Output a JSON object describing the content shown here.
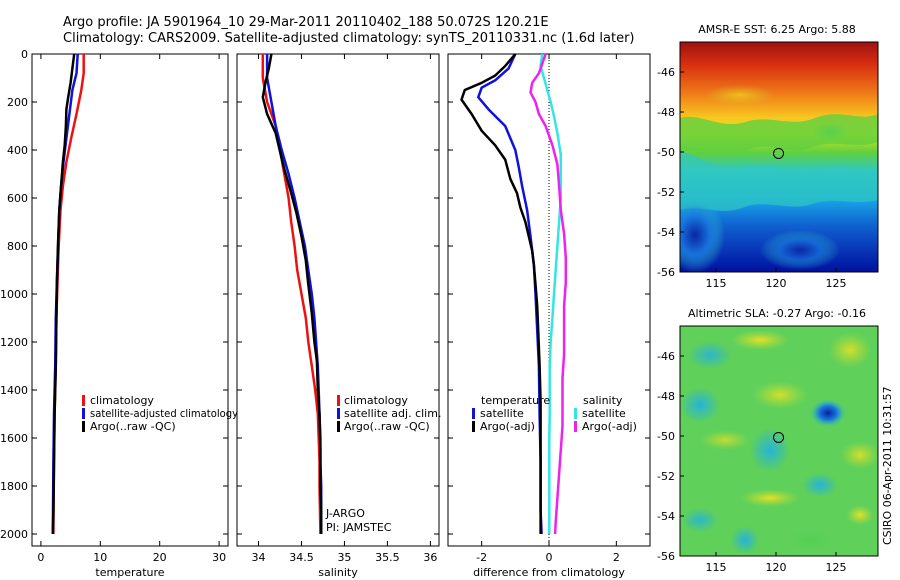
{
  "title_line1": "Argo profile: JA 5901964_10 29-Mar-2011 20110402_188 50.072S 120.21E",
  "title_line2": "Climatology: CARS2009. Satellite-adjusted climatology: synTS_20110331.nc (1.6d later)",
  "credit": "CSIRO 06-Apr-2011 10:31:57",
  "colors": {
    "climatology": "#ee1111",
    "satellite": "#1111dd",
    "argo": "#000000",
    "sal_satellite": "#33e6e6",
    "sal_argo": "#ee22ee"
  },
  "chart_data": [
    {
      "id": "temperature",
      "type": "line",
      "xlabel": "temperature",
      "ylabel": "",
      "xlim": [
        -1.5,
        31.5
      ],
      "ylim": [
        2050,
        0
      ],
      "xticks": [
        0,
        10,
        20,
        30
      ],
      "xtick_labels": [
        "0",
        "10",
        "20",
        "30"
      ],
      "yticks": [
        0,
        200,
        400,
        600,
        800,
        1000,
        1200,
        1400,
        1600,
        1800,
        2000
      ],
      "ytick_labels": [
        "0",
        "200",
        "400",
        "600",
        "800",
        "1000",
        "1200",
        "1400",
        "1600",
        "1800",
        "2000"
      ],
      "legend": [
        "climatology",
        "satellite-adjusted climatology",
        "Argo(..raw -QC)"
      ],
      "series": [
        {
          "name": "climatology",
          "color": "climatology",
          "points": [
            [
              7.2,
              0
            ],
            [
              7.2,
              80
            ],
            [
              6.8,
              150
            ],
            [
              6.0,
              250
            ],
            [
              5.1,
              350
            ],
            [
              4.3,
              450
            ],
            [
              3.7,
              550
            ],
            [
              3.3,
              650
            ],
            [
              3.0,
              800
            ],
            [
              2.8,
              950
            ],
            [
              2.6,
              1100
            ],
            [
              2.5,
              1300
            ],
            [
              2.3,
              1500
            ],
            [
              2.2,
              1700
            ],
            [
              2.1,
              2000
            ]
          ]
        },
        {
          "name": "satellite-adjusted climatology",
          "color": "satellite",
          "points": [
            [
              6.2,
              0
            ],
            [
              6.0,
              80
            ],
            [
              5.3,
              150
            ],
            [
              4.8,
              250
            ],
            [
              4.3,
              350
            ],
            [
              3.8,
              450
            ],
            [
              3.4,
              550
            ],
            [
              3.1,
              650
            ],
            [
              2.9,
              800
            ],
            [
              2.7,
              950
            ],
            [
              2.5,
              1100
            ],
            [
              2.4,
              1300
            ],
            [
              2.2,
              1500
            ],
            [
              2.1,
              1700
            ],
            [
              2.0,
              2000
            ]
          ]
        },
        {
          "name": "Argo(..raw -QC)",
          "color": "argo",
          "points": [
            [
              5.6,
              0
            ],
            [
              5.3,
              60
            ],
            [
              5.0,
              120
            ],
            [
              4.6,
              180
            ],
            [
              4.3,
              230
            ],
            [
              4.2,
              300
            ],
            [
              4.0,
              380
            ],
            [
              3.7,
              450
            ],
            [
              3.4,
              550
            ],
            [
              3.1,
              650
            ],
            [
              2.9,
              780
            ],
            [
              2.7,
              950
            ],
            [
              2.6,
              1100
            ],
            [
              2.5,
              1300
            ],
            [
              2.3,
              1500
            ],
            [
              2.2,
              1700
            ],
            [
              2.1,
              1900
            ],
            [
              2.0,
              2000
            ]
          ]
        }
      ]
    },
    {
      "id": "salinity",
      "type": "line",
      "xlabel": "salinity",
      "ylabel": "",
      "xlim": [
        33.75,
        36.1
      ],
      "ylim": [
        2050,
        0
      ],
      "xticks": [
        34,
        34.5,
        35,
        35.5,
        36
      ],
      "xtick_labels": [
        "34",
        "34.5",
        "35",
        "35.5",
        "36"
      ],
      "legend": [
        "climatology",
        "satellite adj. clim.",
        "Argo(..raw -QC)"
      ],
      "annotation": [
        "J-ARGO",
        "PI: JAMSTEC"
      ],
      "series": [
        {
          "name": "climatology",
          "color": "climatology",
          "points": [
            [
              34.05,
              0
            ],
            [
              34.05,
              100
            ],
            [
              34.1,
              200
            ],
            [
              34.2,
              300
            ],
            [
              34.25,
              400
            ],
            [
              34.3,
              500
            ],
            [
              34.35,
              600
            ],
            [
              34.38,
              700
            ],
            [
              34.42,
              800
            ],
            [
              34.45,
              900
            ],
            [
              34.5,
              1000
            ],
            [
              34.55,
              1100
            ],
            [
              34.58,
              1200
            ],
            [
              34.62,
              1300
            ],
            [
              34.66,
              1400
            ],
            [
              34.69,
              1500
            ],
            [
              34.7,
              1600
            ],
            [
              34.71,
              1700
            ],
            [
              34.71,
              1800
            ],
            [
              34.72,
              2000
            ]
          ]
        },
        {
          "name": "satellite adj. clim.",
          "color": "satellite",
          "points": [
            [
              34.1,
              0
            ],
            [
              34.1,
              100
            ],
            [
              34.15,
              200
            ],
            [
              34.2,
              300
            ],
            [
              34.27,
              400
            ],
            [
              34.35,
              500
            ],
            [
              34.42,
              600
            ],
            [
              34.48,
              700
            ],
            [
              34.54,
              800
            ],
            [
              34.58,
              900
            ],
            [
              34.62,
              1000
            ],
            [
              34.65,
              1100
            ],
            [
              34.67,
              1200
            ],
            [
              34.69,
              1300
            ],
            [
              34.7,
              1400
            ],
            [
              34.71,
              1500
            ],
            [
              34.72,
              1600
            ],
            [
              34.72,
              1700
            ],
            [
              34.73,
              1800
            ],
            [
              34.73,
              2000
            ]
          ]
        },
        {
          "name": "Argo(..raw -QC)",
          "color": "argo",
          "points": [
            [
              34.15,
              0
            ],
            [
              34.12,
              60
            ],
            [
              34.08,
              120
            ],
            [
              34.05,
              180
            ],
            [
              34.1,
              250
            ],
            [
              34.2,
              330
            ],
            [
              34.26,
              420
            ],
            [
              34.3,
              480
            ],
            [
              34.38,
              580
            ],
            [
              34.44,
              660
            ],
            [
              34.5,
              760
            ],
            [
              34.55,
              860
            ],
            [
              34.58,
              960
            ],
            [
              34.62,
              1080
            ],
            [
              34.65,
              1200
            ],
            [
              34.68,
              1280
            ],
            [
              34.69,
              1400
            ],
            [
              34.71,
              1500
            ],
            [
              34.72,
              1650
            ],
            [
              34.72,
              1800
            ],
            [
              34.73,
              1900
            ],
            [
              34.73,
              2000
            ]
          ]
        }
      ]
    },
    {
      "id": "difference",
      "type": "line",
      "xlabel": "difference from climatology",
      "ylabel": "",
      "xlim": [
        -3,
        3
      ],
      "ylim": [
        2050,
        0
      ],
      "xticks": [
        -2,
        0,
        2
      ],
      "xtick_labels": [
        "-2",
        "0",
        "2"
      ],
      "legend_groups": [
        {
          "title": "temperature",
          "items": [
            "satellite",
            "Argo(-adj)"
          ]
        },
        {
          "title": "salinity",
          "items": [
            "satellite",
            "Argo(-adj)"
          ]
        }
      ],
      "series": [
        {
          "name": "temperature satellite",
          "color": "satellite",
          "points": [
            [
              -1.0,
              0
            ],
            [
              -1.2,
              60
            ],
            [
              -1.6,
              110
            ],
            [
              -2.0,
              140
            ],
            [
              -2.1,
              180
            ],
            [
              -1.8,
              230
            ],
            [
              -1.3,
              300
            ],
            [
              -1.0,
              400
            ],
            [
              -0.9,
              470
            ],
            [
              -0.8,
              550
            ],
            [
              -0.65,
              650
            ],
            [
              -0.55,
              760
            ],
            [
              -0.45,
              880
            ],
            [
              -0.4,
              1000
            ],
            [
              -0.35,
              1150
            ],
            [
              -0.3,
              1300
            ],
            [
              -0.28,
              1500
            ],
            [
              -0.25,
              1700
            ],
            [
              -0.25,
              1900
            ],
            [
              -0.22,
              2000
            ]
          ]
        },
        {
          "name": "temperature Argo(-adj)",
          "color": "argo",
          "points": [
            [
              -1.0,
              0
            ],
            [
              -1.3,
              50
            ],
            [
              -1.6,
              90
            ],
            [
              -2.0,
              120
            ],
            [
              -2.5,
              150
            ],
            [
              -2.6,
              190
            ],
            [
              -2.3,
              250
            ],
            [
              -2.0,
              320
            ],
            [
              -1.6,
              380
            ],
            [
              -1.3,
              440
            ],
            [
              -1.15,
              520
            ],
            [
              -0.95,
              580
            ],
            [
              -0.85,
              640
            ],
            [
              -0.7,
              700
            ],
            [
              -0.6,
              760
            ],
            [
              -0.5,
              820
            ],
            [
              -0.45,
              880
            ],
            [
              -0.4,
              960
            ],
            [
              -0.35,
              1050
            ],
            [
              -0.32,
              1150
            ],
            [
              -0.28,
              1300
            ],
            [
              -0.25,
              1450
            ],
            [
              -0.25,
              1600
            ],
            [
              -0.25,
              1800
            ],
            [
              -0.25,
              2000
            ]
          ]
        },
        {
          "name": "salinity satellite",
          "color": "sal_satellite",
          "points": [
            [
              -0.2,
              0
            ],
            [
              -0.25,
              50
            ],
            [
              -0.15,
              100
            ],
            [
              -0.05,
              150
            ],
            [
              0.05,
              200
            ],
            [
              0.15,
              260
            ],
            [
              0.25,
              330
            ],
            [
              0.35,
              420
            ],
            [
              0.35,
              500
            ],
            [
              0.35,
              600
            ],
            [
              0.3,
              700
            ],
            [
              0.25,
              800
            ],
            [
              0.2,
              900
            ],
            [
              0.15,
              1000
            ],
            [
              0.1,
              1100
            ],
            [
              0.05,
              1200
            ],
            [
              0.02,
              1300
            ],
            [
              0.02,
              1400
            ],
            [
              0.02,
              1500
            ],
            [
              0.01,
              1600
            ],
            [
              0.01,
              1700
            ],
            [
              0.01,
              1800
            ],
            [
              0.01,
              2000
            ]
          ]
        },
        {
          "name": "salinity Argo(-adj)",
          "color": "sal_argo",
          "points": [
            [
              -0.1,
              0
            ],
            [
              -0.2,
              40
            ],
            [
              -0.3,
              80
            ],
            [
              -0.5,
              120
            ],
            [
              -0.55,
              160
            ],
            [
              -0.4,
              200
            ],
            [
              -0.3,
              250
            ],
            [
              -0.1,
              300
            ],
            [
              0.1,
              380
            ],
            [
              0.25,
              460
            ],
            [
              0.3,
              550
            ],
            [
              0.35,
              650
            ],
            [
              0.45,
              750
            ],
            [
              0.5,
              850
            ],
            [
              0.5,
              950
            ],
            [
              0.45,
              1050
            ],
            [
              0.45,
              1150
            ],
            [
              0.45,
              1250
            ],
            [
              0.4,
              1350
            ],
            [
              0.4,
              1450
            ],
            [
              0.4,
              1550
            ],
            [
              0.35,
              1650
            ],
            [
              0.3,
              1750
            ],
            [
              0.25,
              1850
            ],
            [
              0.2,
              1950
            ],
            [
              0.18,
              2000
            ]
          ]
        }
      ]
    },
    {
      "id": "sst_map",
      "type": "heatmap",
      "title": "AMSR-E SST: 6.25 Argo: 5.88",
      "xlim": [
        112,
        128.5
      ],
      "ylim": [
        -56,
        -44.5
      ],
      "xticks": [
        115,
        120,
        125
      ],
      "xtick_labels": [
        "115",
        "120",
        "125"
      ],
      "yticks": [
        -46,
        -48,
        -50,
        -52,
        -54,
        -56
      ],
      "ytick_labels": [
        "-46",
        "-48",
        "-50",
        "-52",
        "-54",
        "-56"
      ],
      "marker": {
        "lon": 120.21,
        "lat": -50.072
      }
    },
    {
      "id": "sla_map",
      "type": "heatmap",
      "title": "Altimetric SLA: -0.27 Argo: -0.16",
      "xlim": [
        112,
        128.5
      ],
      "ylim": [
        -56,
        -44.5
      ],
      "xticks": [
        115,
        120,
        125
      ],
      "xtick_labels": [
        "115",
        "120",
        "125"
      ],
      "yticks": [
        -46,
        -48,
        -50,
        -52,
        -54,
        -56
      ],
      "ytick_labels": [
        "-46",
        "-48",
        "-50",
        "-52",
        "-54",
        "-56"
      ],
      "marker": {
        "lon": 120.21,
        "lat": -50.072
      }
    }
  ]
}
